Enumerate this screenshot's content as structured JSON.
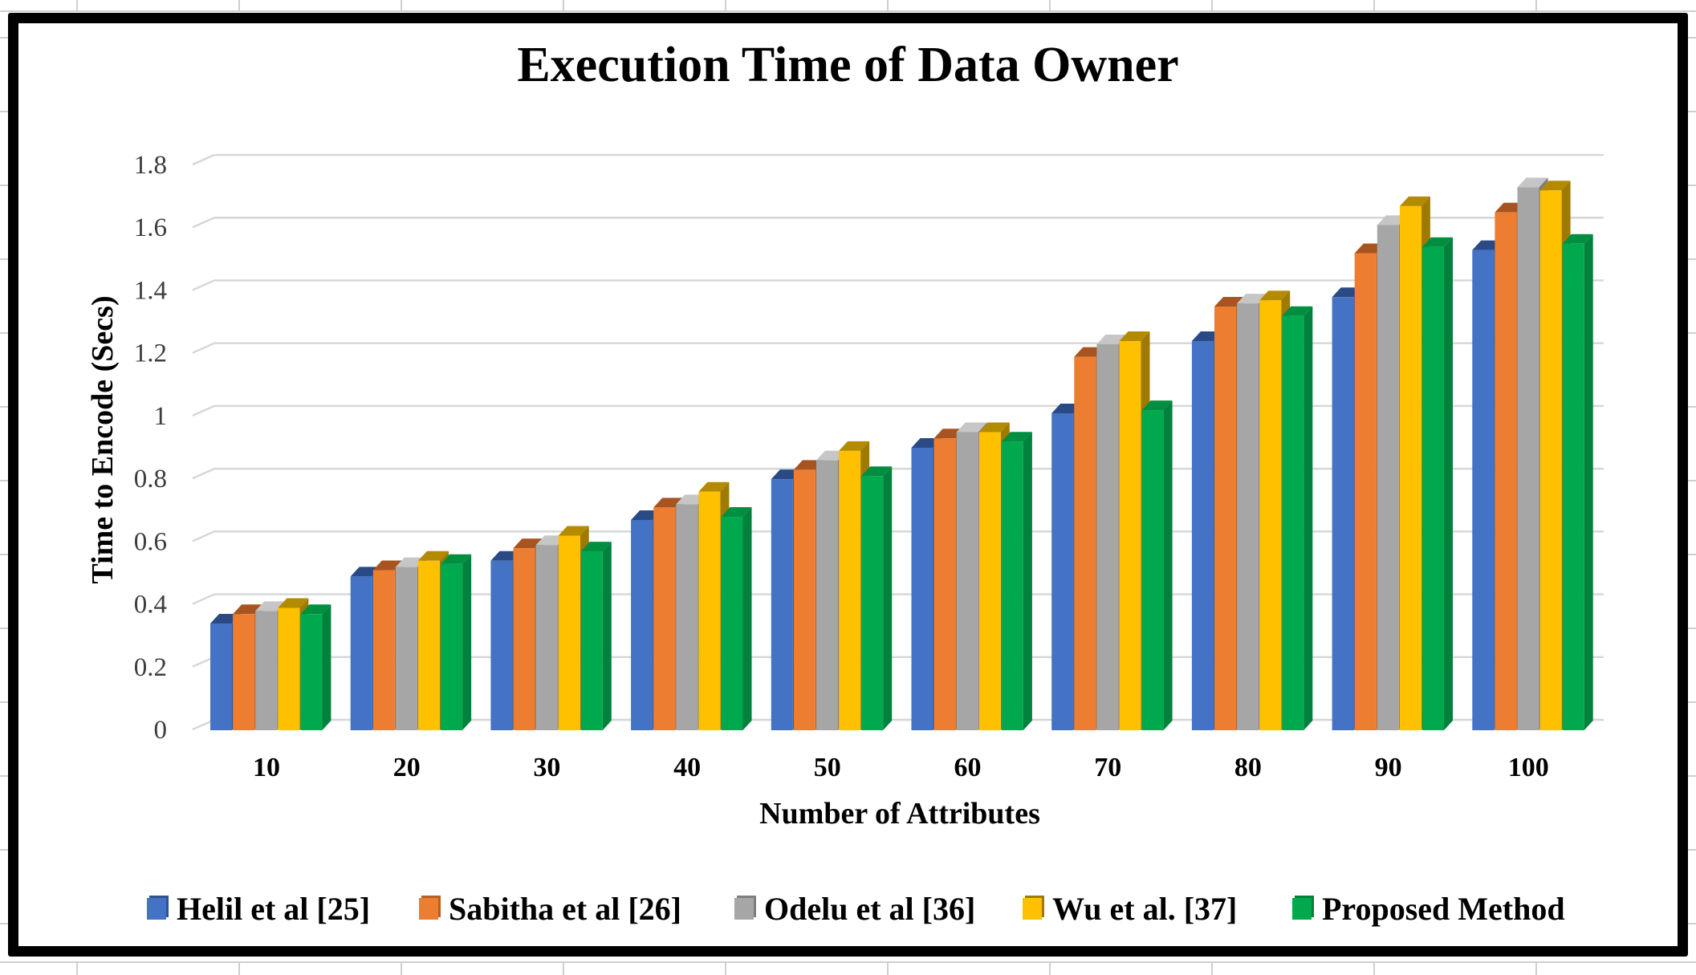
{
  "chart_data": {
    "type": "bar",
    "title": "Execution Time of Data Owner",
    "xlabel": "Number of Attributes",
    "ylabel": "Time to Encode (Secs)",
    "categories": [
      "10",
      "20",
      "30",
      "40",
      "50",
      "60",
      "70",
      "80",
      "90",
      "100"
    ],
    "series": [
      {
        "name": "Helil et al [25]",
        "color": "#4472C4",
        "color_side": "#2E5394",
        "color_top": "#2A4A85",
        "values": [
          0.34,
          0.49,
          0.54,
          0.67,
          0.8,
          0.9,
          1.01,
          1.24,
          1.38,
          1.53
        ]
      },
      {
        "name": "Sabitha et al [26]",
        "color": "#ED7D31",
        "color_side": "#B95F23",
        "color_top": "#A85420",
        "values": [
          0.37,
          0.51,
          0.58,
          0.71,
          0.83,
          0.93,
          1.19,
          1.35,
          1.52,
          1.65
        ]
      },
      {
        "name": "Odelu et al [36]",
        "color": "#A6A6A6",
        "color_side": "#7E7E7E",
        "color_top": "#C6C6C6",
        "values": [
          0.38,
          0.52,
          0.59,
          0.72,
          0.86,
          0.95,
          1.23,
          1.36,
          1.61,
          1.73
        ]
      },
      {
        "name": "Wu et al. [37]",
        "color": "#FFC000",
        "color_side": "#9E7A00",
        "color_top": "#B38A00",
        "values": [
          0.39,
          0.54,
          0.62,
          0.76,
          0.89,
          0.95,
          1.24,
          1.37,
          1.67,
          1.72
        ]
      },
      {
        "name": "Proposed Method",
        "color": "#00A94E",
        "color_side": "#00813C",
        "color_top": "#008F41",
        "values": [
          0.37,
          0.53,
          0.57,
          0.68,
          0.81,
          0.92,
          1.02,
          1.32,
          1.54,
          1.55
        ]
      }
    ],
    "ylim": [
      0,
      1.8
    ],
    "yticks": [
      "0",
      "0.2",
      "0.4",
      "0.6",
      "0.8",
      "1",
      "1.2",
      "1.4",
      "1.6",
      "1.8"
    ],
    "grid": true,
    "gridline_color": "#d6d6d6",
    "legend_position": "bottom",
    "bar_style": "3d-bevel",
    "frame_color": "#000000"
  }
}
